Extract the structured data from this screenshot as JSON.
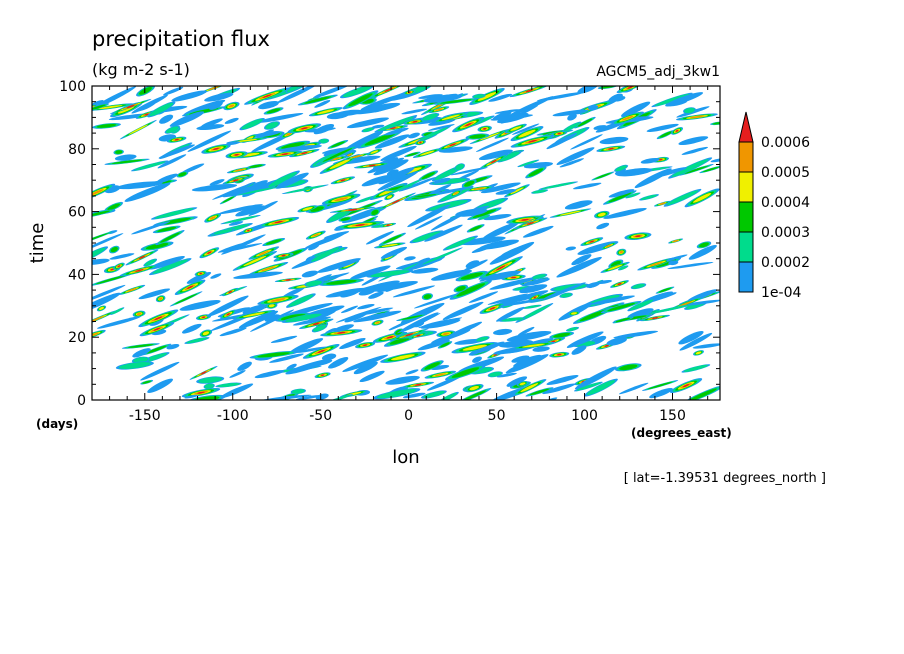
{
  "chart_data": {
    "type": "heatmap",
    "title": "precipitation flux",
    "units": "(kg m-2 s-1)",
    "model_label": "AGCM5_adj_3kw1",
    "xlabel": "lon",
    "ylabel": "time",
    "x_unit": "(degrees_east)",
    "y_unit": "(days)",
    "footnote": "[ lat=-1.39531 degrees_north ]",
    "xlim": [
      -180,
      177
    ],
    "ylim": [
      0,
      100
    ],
    "x_ticks": [
      "-150",
      "-100",
      "-50",
      "0",
      "50",
      "100",
      "150"
    ],
    "y_ticks": [
      "0",
      "20",
      "40",
      "60",
      "80",
      "100"
    ],
    "x_tick_values": [
      -150,
      -100,
      -50,
      0,
      50,
      100,
      150
    ],
    "y_tick_values": [
      0,
      20,
      40,
      60,
      80,
      100
    ],
    "colorbar": {
      "levels": [
        "1e-04",
        "0.0002",
        "0.0003",
        "0.0004",
        "0.0005",
        "0.0006"
      ],
      "level_values": [
        0.0001,
        0.0002,
        0.0003,
        0.0004,
        0.0005,
        0.0006
      ],
      "colors": [
        "#1e9bf0",
        "#00dc8c",
        "#00c800",
        "#f0f000",
        "#f09600",
        "#e61e1e"
      ],
      "extend": "max"
    },
    "pattern_description_free": true
  }
}
